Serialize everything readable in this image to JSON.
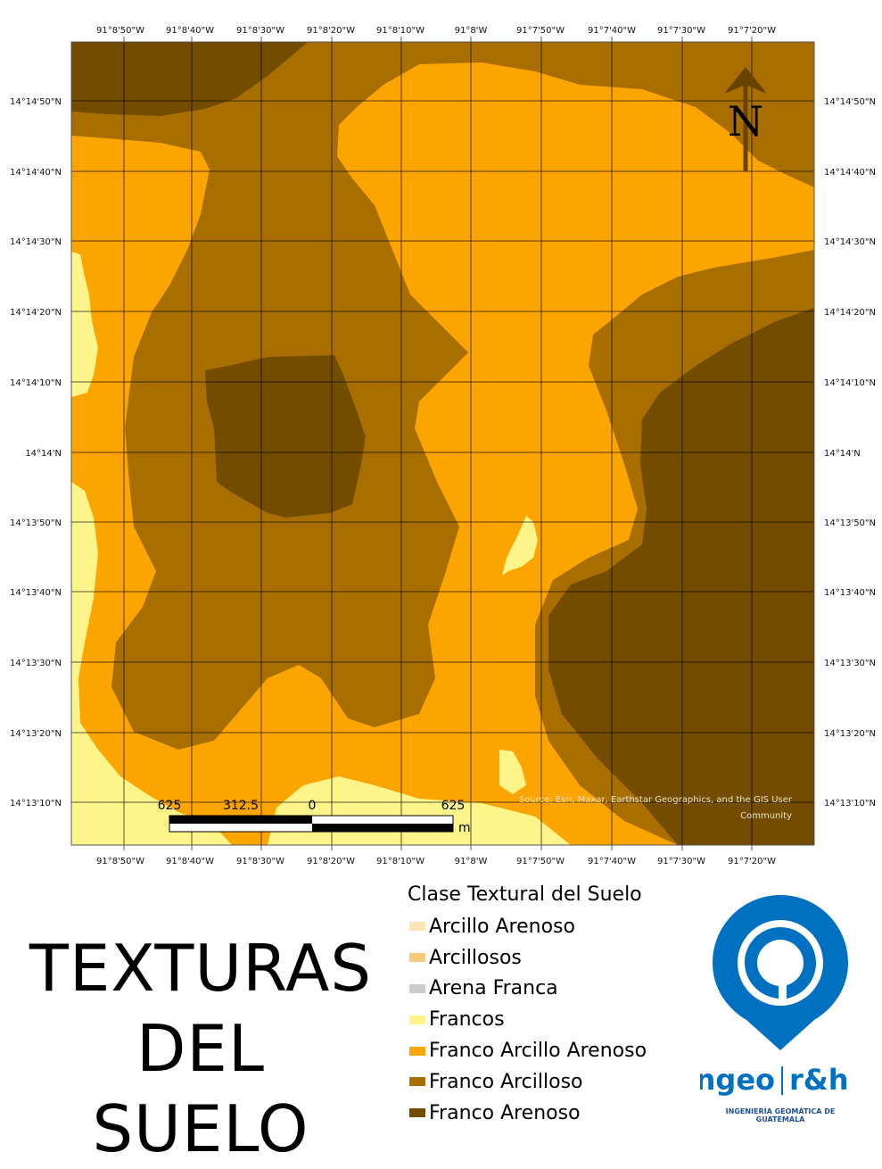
{
  "map": {
    "longitude_labels": [
      "91°8'50\"W",
      "91°8'40\"W",
      "91°8'30\"W",
      "91°8'20\"W",
      "91°8'10\"W",
      "91°8'W",
      "91°7'50\"W",
      "91°7'40\"W",
      "91°7'30\"W",
      "91°7'20\"W"
    ],
    "latitude_labels": [
      "14°14'50\"N",
      "14°14'40\"N",
      "14°14'30\"N",
      "14°14'20\"N",
      "14°14'10\"N",
      "14°14'N",
      "14°13'50\"N",
      "14°13'40\"N",
      "14°13'30\"N",
      "14°13'20\"N",
      "14°13'10\"N"
    ],
    "north_arrow_label": "N",
    "scale_bar": {
      "labels": [
        "625",
        "312.5",
        "0",
        "625"
      ],
      "unit": "m"
    },
    "source": [
      "Source: Esri, Maxar, Earthstar Geographics, and the GIS User",
      "Community"
    ],
    "class_colors": {
      "francos": "#fdf58a",
      "franco_arcillo_arenoso": "#fca500",
      "franco_arcilloso": "#a86f00",
      "franco_arenoso": "#734c00"
    }
  },
  "title": {
    "line1": "TEXTURAS",
    "line2": "DEL SUELO"
  },
  "legend": {
    "title": "Clase Textural del Suelo",
    "items": [
      {
        "label": "Arcillo Arenoso",
        "color": "#fde4b2"
      },
      {
        "label": "Arcillosos",
        "color": "#f5cb7b"
      },
      {
        "label": "Arena Franca",
        "color": "#cccccc"
      },
      {
        "label": "Francos",
        "color": "#fdf58a"
      },
      {
        "label": "Franco Arcillo Arenoso",
        "color": "#fca500"
      },
      {
        "label": "Franco Arcilloso",
        "color": "#a86f00"
      },
      {
        "label": "Franco Arenoso",
        "color": "#734c00"
      }
    ]
  },
  "logo": {
    "brand_left": "ingeo",
    "brand_right": "r&h",
    "subtitle": "INGENIERÍA GEOMÁTICA DE GUATEMALA",
    "color": "#0070c0"
  }
}
